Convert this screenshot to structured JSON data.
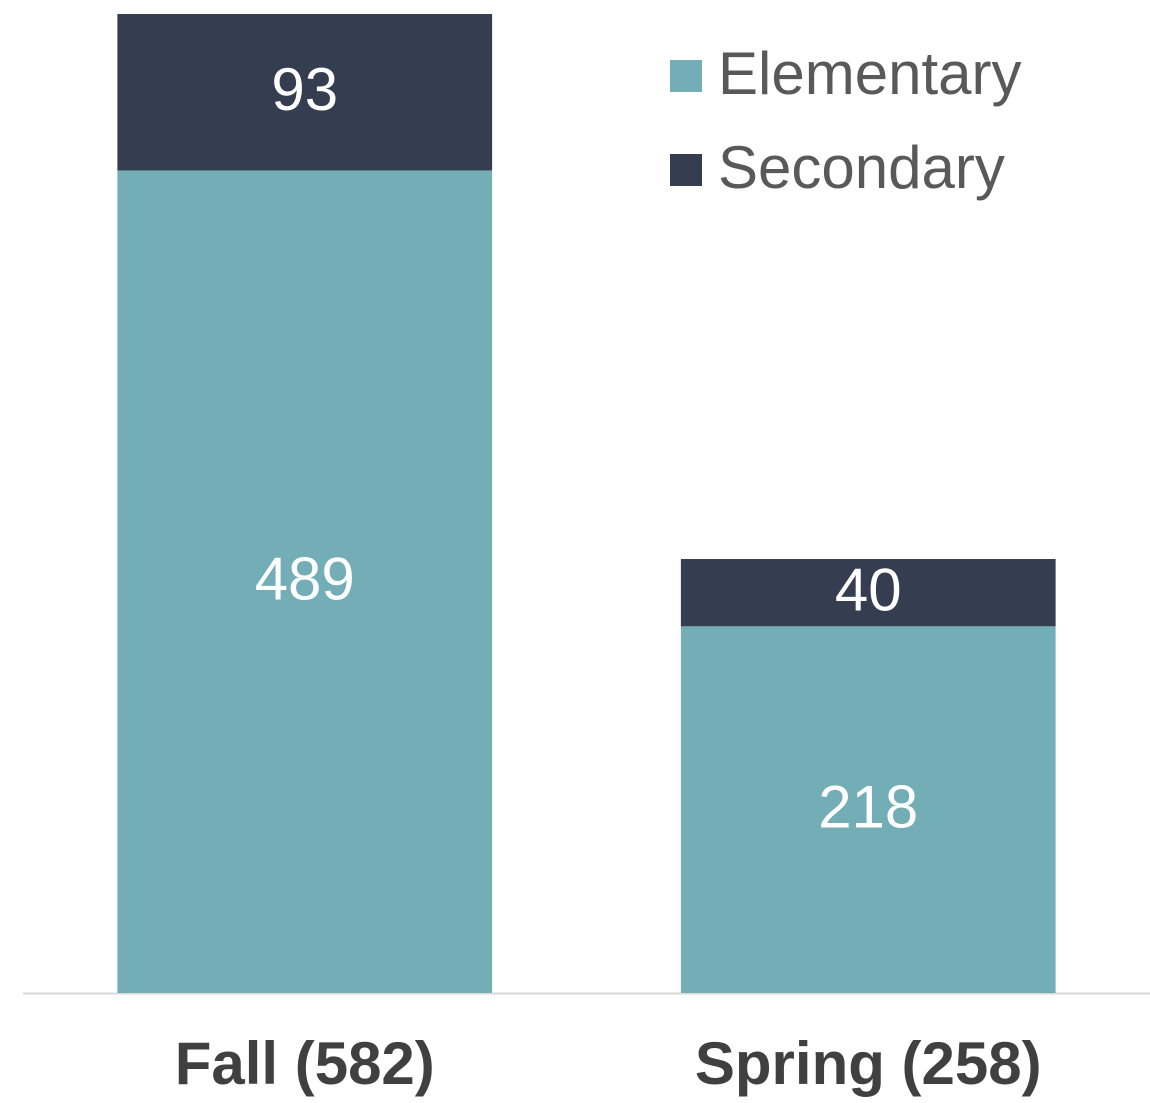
{
  "chart_data": {
    "type": "stacked_bar",
    "categories": [
      "Fall (582)",
      "Spring (258)"
    ],
    "series": [
      {
        "name": "Elementary",
        "color": "#73adb5",
        "values": [
          489,
          218
        ]
      },
      {
        "name": "Secondary",
        "color": "#343e50",
        "values": [
          93,
          40
        ]
      }
    ],
    "legend": "upper right"
  }
}
